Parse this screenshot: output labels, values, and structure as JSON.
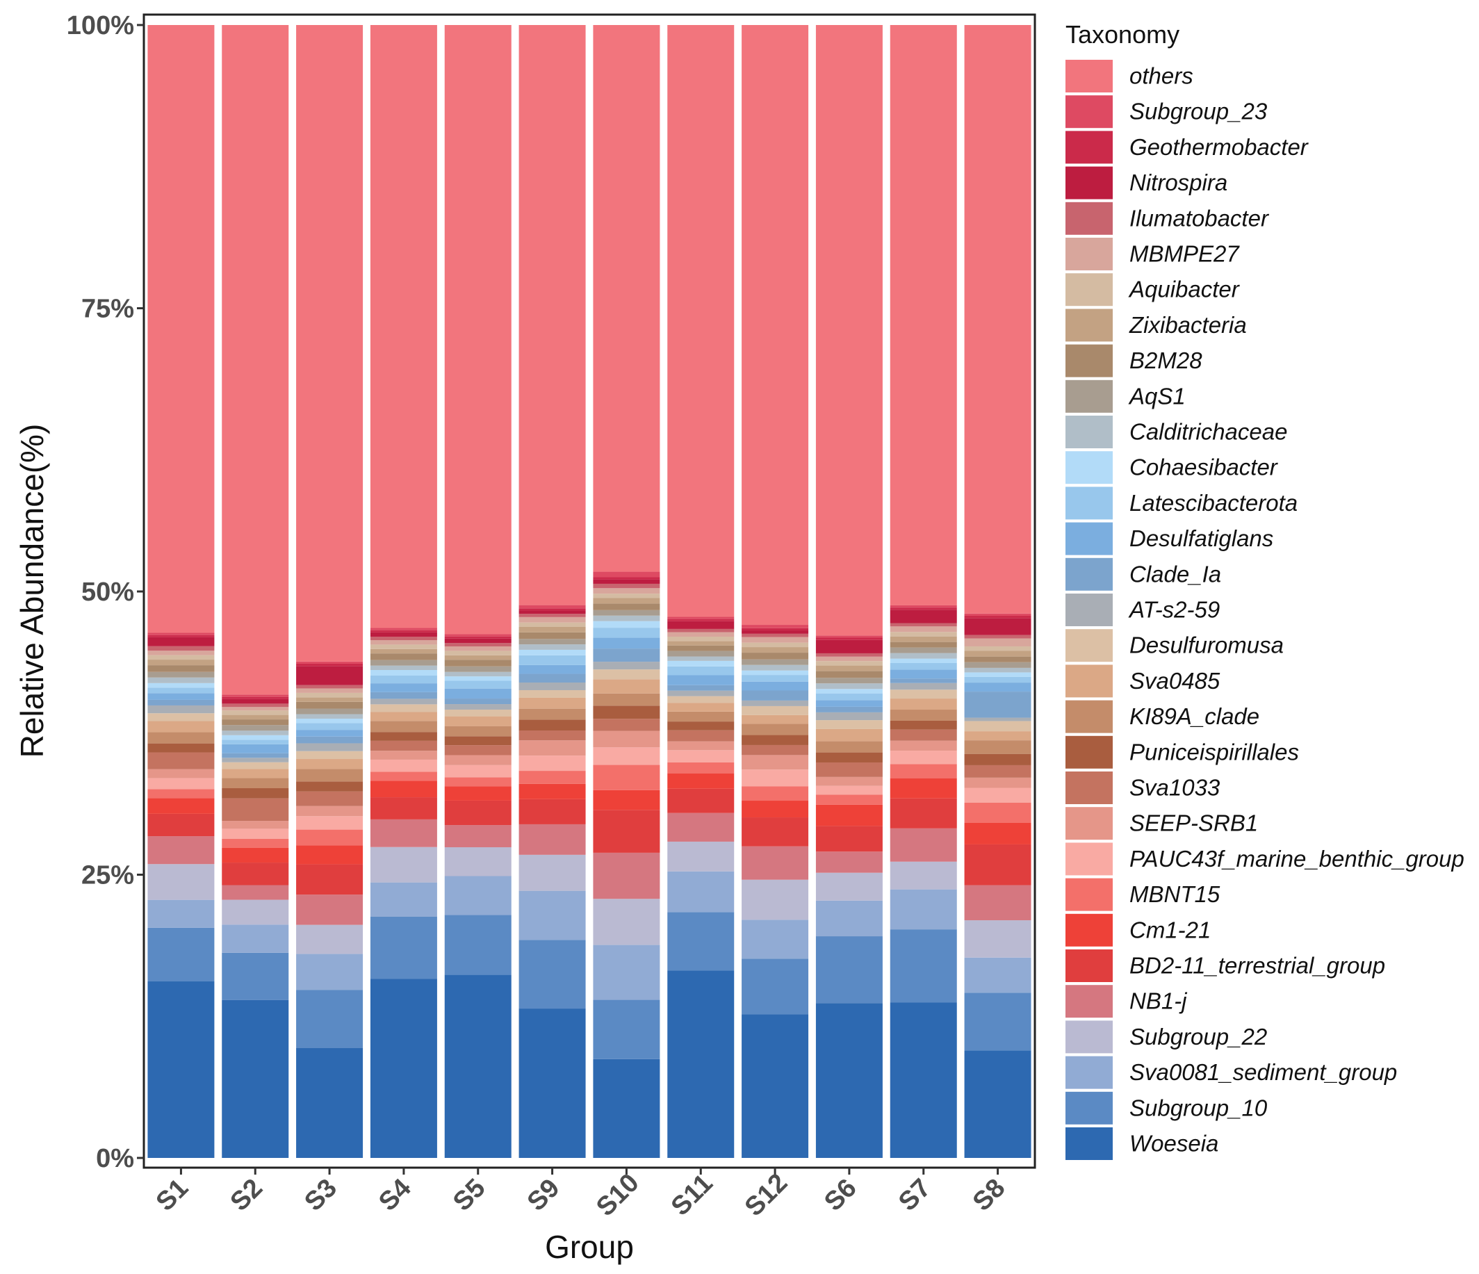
{
  "chart_data": {
    "type": "bar",
    "stacked": true,
    "xlabel": "Group",
    "ylabel": "Relative Abundance(%)",
    "ylim": [
      0,
      100
    ],
    "y_ticks": [
      0,
      25,
      50,
      75,
      100
    ],
    "y_tick_labels": [
      "0%",
      "25%",
      "50%",
      "75%",
      "100%"
    ],
    "legend_title": "Taxonomy",
    "legend_position": "right",
    "grid": false,
    "categories": [
      "S1",
      "S2",
      "S3",
      "S4",
      "S5",
      "S9",
      "S10",
      "S11",
      "S12",
      "S6",
      "S7",
      "S8"
    ],
    "series": [
      {
        "name": "Woeseia",
        "color": "#2d69b1",
        "values": [
          15.8,
          14.0,
          9.8,
          16.2,
          16.5,
          13.7,
          9.0,
          17.0,
          12.9,
          13.9,
          14.0,
          9.5
        ]
      },
      {
        "name": "Subgroup_10",
        "color": "#5b8ac4",
        "values": [
          4.8,
          4.2,
          5.2,
          5.6,
          5.4,
          6.3,
          5.4,
          5.3,
          5.0,
          6.0,
          6.6,
          5.1
        ]
      },
      {
        "name": "Sva0081_sediment_group",
        "color": "#91abd4",
        "values": [
          2.5,
          2.5,
          3.2,
          3.1,
          3.5,
          4.5,
          5.0,
          3.7,
          3.5,
          3.2,
          3.6,
          3.1
        ]
      },
      {
        "name": "Subgroup_22",
        "color": "#babad2",
        "values": [
          3.2,
          2.2,
          2.6,
          3.2,
          2.6,
          3.3,
          4.2,
          2.7,
          3.6,
          2.5,
          2.5,
          3.3
        ]
      },
      {
        "name": "NB1-j",
        "color": "#d57780",
        "values": [
          2.5,
          1.3,
          2.7,
          2.5,
          2.0,
          2.8,
          4.2,
          2.6,
          3.0,
          1.9,
          3.0,
          3.1
        ]
      },
      {
        "name": "BD2-11_terrestrial_group",
        "color": "#e03e3e",
        "values": [
          2.0,
          2.0,
          2.7,
          2.0,
          2.2,
          2.3,
          3.9,
          2.2,
          2.6,
          2.3,
          2.7,
          3.6
        ]
      },
      {
        "name": "Cm1-21",
        "color": "#ee4138",
        "values": [
          1.4,
          1.3,
          1.7,
          1.5,
          1.3,
          1.4,
          1.8,
          1.4,
          1.5,
          1.9,
          1.8,
          1.9
        ]
      },
      {
        "name": "MBNT15",
        "color": "#f3706a",
        "values": [
          0.8,
          0.8,
          1.4,
          0.8,
          0.8,
          1.2,
          2.3,
          1.0,
          1.3,
          0.9,
          1.3,
          1.8
        ]
      },
      {
        "name": "PAUC43f_marine_benthic_group",
        "color": "#f9aaa3",
        "values": [
          1.0,
          0.9,
          1.2,
          1.1,
          1.1,
          1.4,
          1.6,
          1.1,
          1.5,
          0.8,
          1.2,
          1.3
        ]
      },
      {
        "name": "SEEP-SRB1",
        "color": "#e59689",
        "values": [
          0.8,
          0.7,
          0.9,
          0.8,
          0.9,
          1.4,
          1.5,
          0.8,
          1.3,
          0.8,
          0.9,
          0.9
        ]
      },
      {
        "name": "Sva1033",
        "color": "#c47360",
        "values": [
          1.5,
          2.0,
          1.3,
          0.9,
          0.9,
          0.9,
          1.1,
          1.0,
          0.9,
          1.3,
          1.0,
          1.1
        ]
      },
      {
        "name": "Puniceispirillales",
        "color": "#a95d3f",
        "values": [
          0.8,
          0.9,
          0.9,
          0.8,
          0.8,
          1.0,
          1.2,
          0.8,
          0.9,
          0.9,
          0.8,
          1.0
        ]
      },
      {
        "name": "KI89A_clade",
        "color": "#c48c6a",
        "values": [
          1.0,
          0.9,
          1.1,
          1.0,
          0.9,
          1.0,
          1.1,
          0.9,
          1.0,
          1.0,
          1.0,
          1.2
        ]
      },
      {
        "name": "Sva0485",
        "color": "#dba886",
        "values": [
          1.0,
          0.8,
          0.9,
          0.8,
          0.9,
          1.0,
          1.3,
          0.8,
          0.8,
          1.1,
          1.0,
          0.8
        ]
      },
      {
        "name": "Desulfuromusa",
        "color": "#dcc0a5",
        "values": [
          0.7,
          0.6,
          0.7,
          0.7,
          0.6,
          0.7,
          0.9,
          0.6,
          0.8,
          0.8,
          0.8,
          0.9
        ]
      },
      {
        "name": "AT-s2-59",
        "color": "#a9aeb5",
        "values": [
          0.7,
          0.4,
          0.7,
          0.5,
          0.5,
          0.7,
          0.7,
          0.5,
          0.5,
          0.7,
          0.6,
          0.3
        ]
      },
      {
        "name": "Clade_Ia",
        "color": "#7ca4cd",
        "values": [
          0.5,
          0.4,
          0.6,
          0.6,
          0.5,
          0.8,
          1.2,
          0.5,
          0.9,
          0.5,
          0.4,
          2.3
        ]
      },
      {
        "name": "Desulfatiglans",
        "color": "#7baedf",
        "values": [
          0.6,
          0.8,
          0.6,
          0.8,
          0.9,
          0.8,
          1.0,
          0.9,
          0.8,
          0.6,
          0.8,
          0.8
        ]
      },
      {
        "name": "Latescibacterota",
        "color": "#98c7ec",
        "values": [
          0.5,
          0.4,
          0.6,
          0.7,
          0.7,
          0.9,
          0.9,
          0.8,
          0.6,
          0.6,
          0.6,
          0.5
        ]
      },
      {
        "name": "Cohaesibacter",
        "color": "#b2dbf8",
        "values": [
          0.4,
          0.4,
          0.4,
          0.5,
          0.4,
          0.5,
          0.6,
          0.5,
          0.4,
          0.4,
          0.4,
          0.4
        ]
      },
      {
        "name": "Calditrichaceae",
        "color": "#b0bec8",
        "values": [
          0.5,
          0.4,
          0.4,
          0.4,
          0.4,
          0.5,
          0.5,
          0.4,
          0.5,
          0.5,
          0.5,
          0.4
        ]
      },
      {
        "name": "AqS1",
        "color": "#a89d90",
        "values": [
          0.5,
          0.5,
          0.5,
          0.5,
          0.5,
          0.5,
          0.5,
          0.5,
          0.5,
          0.5,
          0.5,
          0.5
        ]
      },
      {
        "name": "B2M28",
        "color": "#a9896b",
        "values": [
          0.6,
          0.5,
          0.6,
          0.6,
          0.6,
          0.6,
          0.6,
          0.5,
          0.6,
          0.6,
          0.5,
          0.5
        ]
      },
      {
        "name": "Zixibacteria",
        "color": "#c3a283",
        "values": [
          0.5,
          0.4,
          0.4,
          0.4,
          0.4,
          0.5,
          0.5,
          0.4,
          0.5,
          0.5,
          0.5,
          0.5
        ]
      },
      {
        "name": "Aquibacter",
        "color": "#d4bba2",
        "values": [
          0.4,
          0.4,
          0.4,
          0.4,
          0.4,
          0.4,
          0.4,
          0.4,
          0.4,
          0.4,
          0.4,
          0.4
        ]
      },
      {
        "name": "MBMPE27",
        "color": "#d8a69c",
        "values": [
          0.4,
          0.3,
          0.4,
          0.4,
          0.4,
          0.5,
          0.5,
          0.4,
          0.5,
          0.4,
          0.5,
          0.7
        ]
      },
      {
        "name": "Ilumatobacter",
        "color": "#c8646e",
        "values": [
          0.4,
          0.3,
          0.3,
          0.3,
          0.3,
          0.3,
          0.4,
          0.3,
          0.3,
          0.3,
          0.3,
          0.3
        ]
      },
      {
        "name": "Nitrospira",
        "color": "#bd1d40",
        "values": [
          0.8,
          0.4,
          1.7,
          0.4,
          0.4,
          0.3,
          0.4,
          0.7,
          0.3,
          1.2,
          1.2,
          1.5
        ]
      },
      {
        "name": "Geothermobacter",
        "color": "#cb2a4a",
        "values": [
          0.2,
          0.2,
          0.2,
          0.2,
          0.2,
          0.2,
          0.2,
          0.2,
          0.2,
          0.2,
          0.2,
          0.2
        ]
      },
      {
        "name": "Subgroup_23",
        "color": "#de4a62",
        "values": [
          0.2,
          0.2,
          0.2,
          0.2,
          0.2,
          0.3,
          0.5,
          0.2,
          0.3,
          0.2,
          0.2,
          0.2
        ]
      },
      {
        "name": "others",
        "color": "#f2757d",
        "values": [
          54.4,
          59.4,
          56.8,
          54.5,
          54.9,
          53.2,
          49.8,
          53.7,
          53.9,
          54.8,
          52.3,
          52.0
        ]
      }
    ]
  }
}
